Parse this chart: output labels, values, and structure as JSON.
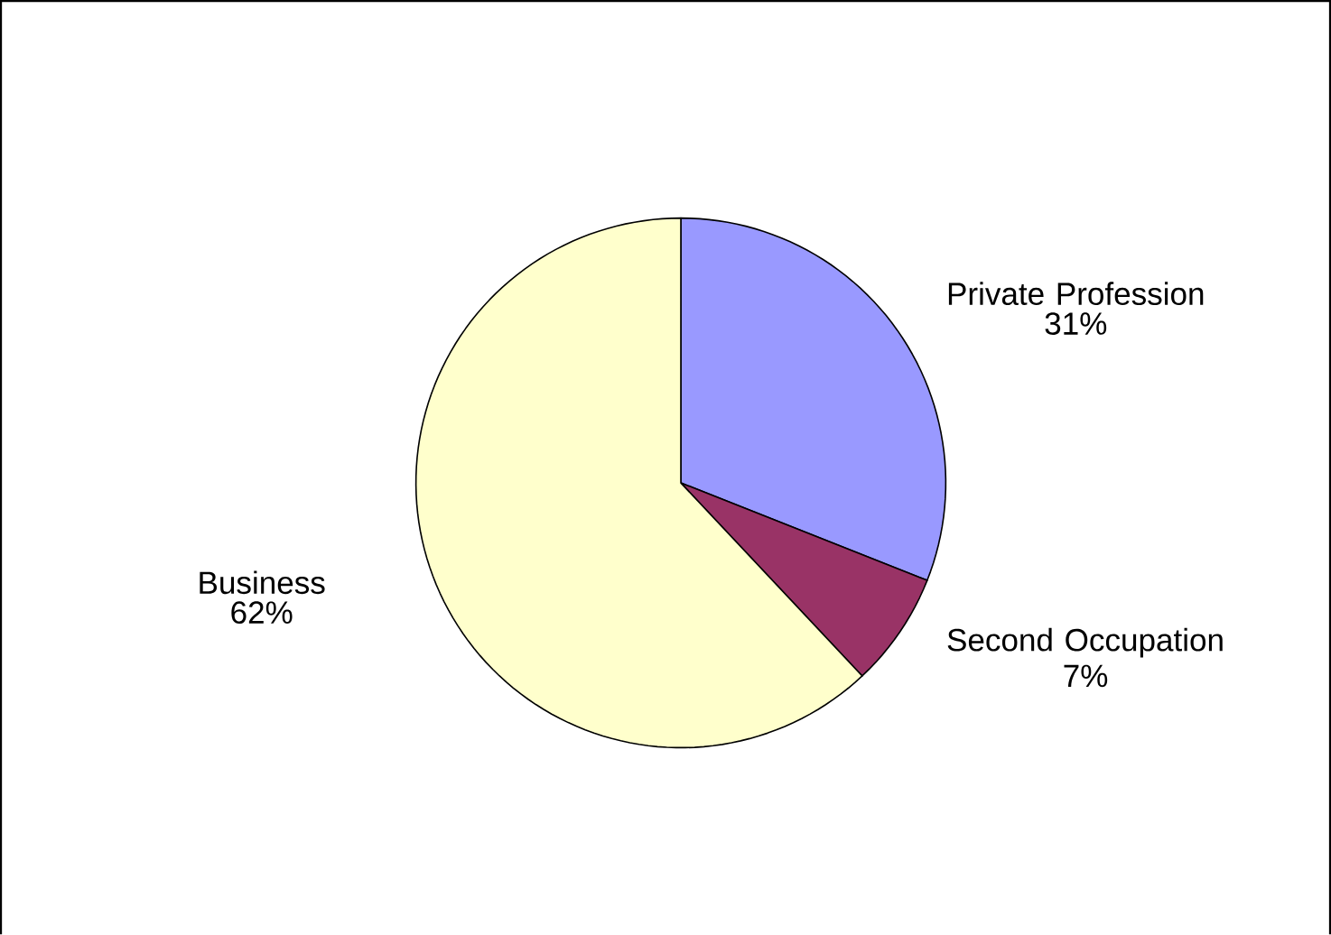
{
  "chart_data": {
    "type": "pie",
    "categories": [
      "Private Profession",
      "Second Occupation",
      "Business"
    ],
    "values": [
      31,
      7,
      62
    ],
    "value_labels": [
      "31%",
      "7%",
      "62%"
    ],
    "colors": [
      "#9999ff",
      "#993366",
      "#ffffcc"
    ]
  }
}
